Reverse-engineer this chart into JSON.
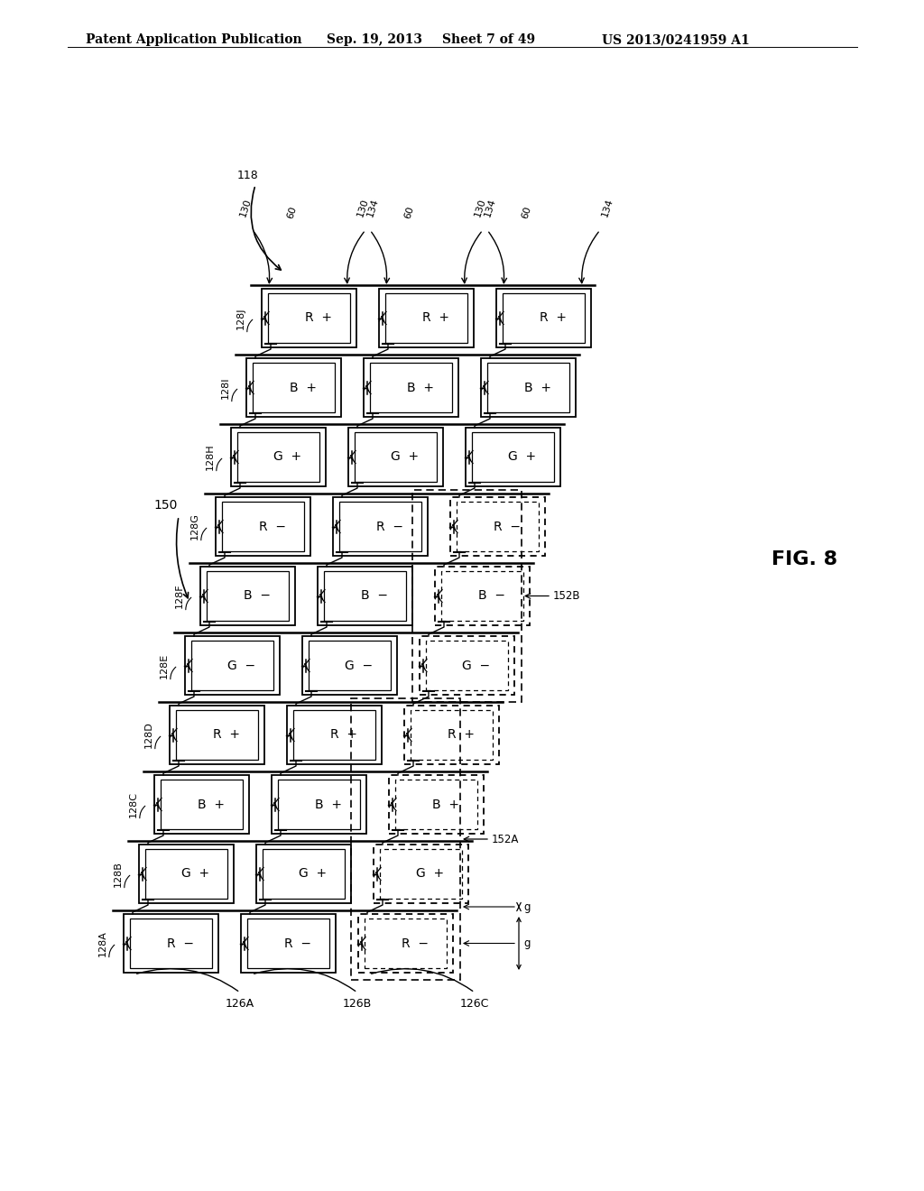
{
  "bg_color": "#ffffff",
  "header_text": "Patent Application Publication",
  "header_date": "Sep. 19, 2013",
  "header_sheet": "Sheet 7 of 49",
  "header_patent": "US 2013/0241959 A1",
  "fig_label": "FIG. 8",
  "rows_top_to_bottom": [
    {
      "label": "128J",
      "cells": [
        "R  +",
        "R  +",
        "R  +"
      ]
    },
    {
      "label": "128I",
      "cells": [
        "B  +",
        "B  +",
        "B  +"
      ]
    },
    {
      "label": "128H",
      "cells": [
        "G  +",
        "G  +",
        "G  +"
      ]
    },
    {
      "label": "128G",
      "cells": [
        "R  −",
        "R  −",
        "R  −"
      ]
    },
    {
      "label": "128F",
      "cells": [
        "B  −",
        "B  −",
        "B  −"
      ]
    },
    {
      "label": "128E",
      "cells": [
        "G  −",
        "G  −",
        "G  −"
      ]
    },
    {
      "label": "128D",
      "cells": [
        "R  +",
        "R  +",
        "R  +"
      ]
    },
    {
      "label": "128C",
      "cells": [
        "B  +",
        "B  +",
        "B  +"
      ]
    },
    {
      "label": "128B",
      "cells": [
        "G  +",
        "G  +",
        "G  +"
      ]
    },
    {
      "label": "128A",
      "cells": [
        "R  −",
        "R  −",
        "R  −"
      ]
    }
  ],
  "col_labels": [
    "126A",
    "126B",
    "126C"
  ],
  "label_150": "150",
  "label_118": "118",
  "label_152A": "152A",
  "label_152B": "152B",
  "label_g": "g",
  "top_col_labels": [
    "130",
    "60",
    "134"
  ]
}
